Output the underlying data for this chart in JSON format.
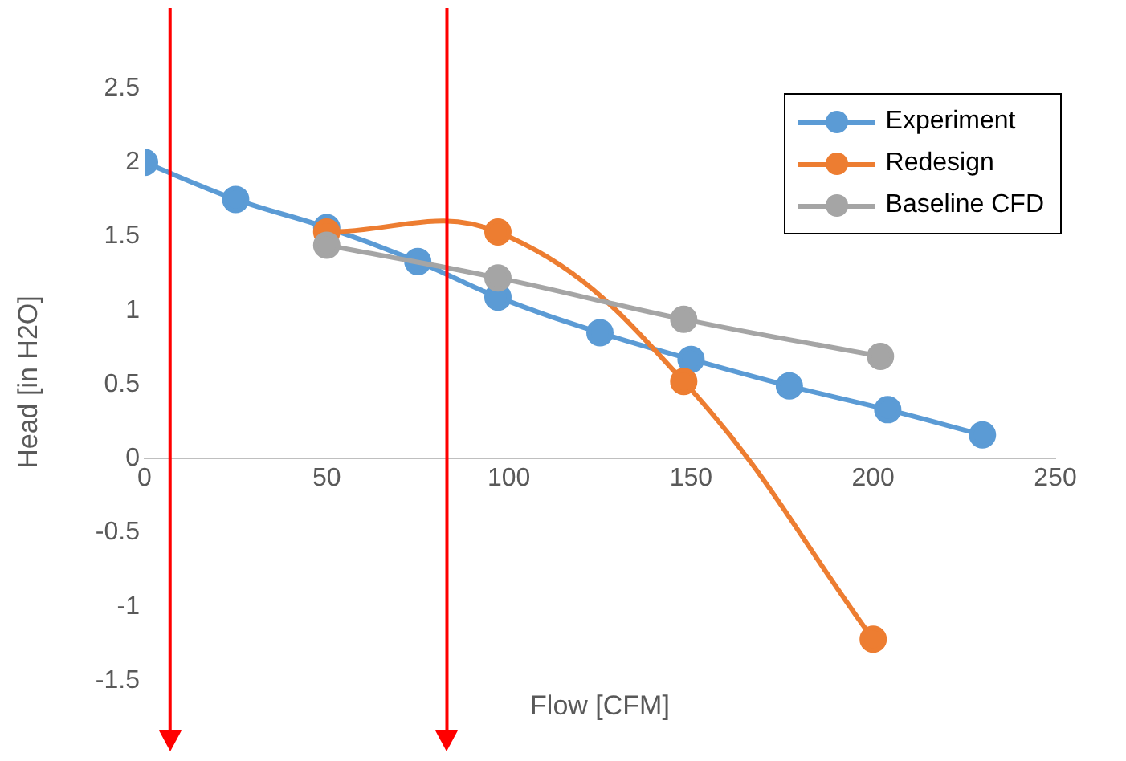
{
  "chart_data": {
    "type": "line",
    "xlabel": "Flow [CFM]",
    "ylabel": "Head [in H2O]",
    "xlim": [
      0,
      250
    ],
    "xticks": [
      0,
      50,
      100,
      150,
      200,
      250
    ],
    "ylim": [
      -1.5,
      2.5
    ],
    "yticks": [
      -1.5,
      -1,
      -0.5,
      0,
      0.5,
      1,
      1.5,
      2,
      2.5
    ],
    "series": [
      {
        "name": "Experiment",
        "color": "#5b9bd5",
        "x": [
          0,
          25,
          50,
          75,
          97,
          125,
          150,
          177,
          204,
          230
        ],
        "values": [
          2,
          1.75,
          1.56,
          1.33,
          1.09,
          0.85,
          0.67,
          0.49,
          0.33,
          0.16
        ]
      },
      {
        "name": "Redesign",
        "color": "#ed7d31",
        "x": [
          50,
          97,
          148,
          200
        ],
        "values": [
          1.53,
          1.53,
          0.52,
          -1.22
        ]
      },
      {
        "name": "Baseline CFD",
        "color": "#a5a5a5",
        "x": [
          50,
          97,
          148,
          202
        ],
        "values": [
          1.44,
          1.22,
          0.94,
          0.69
        ]
      }
    ],
    "ref_lines": [
      {
        "axis": "x",
        "value": 7,
        "color": "#ff0000"
      },
      {
        "axis": "x",
        "value": 83,
        "color": "#ff0000"
      }
    ],
    "grid": false,
    "legend": "top right",
    "marker": "circle"
  }
}
